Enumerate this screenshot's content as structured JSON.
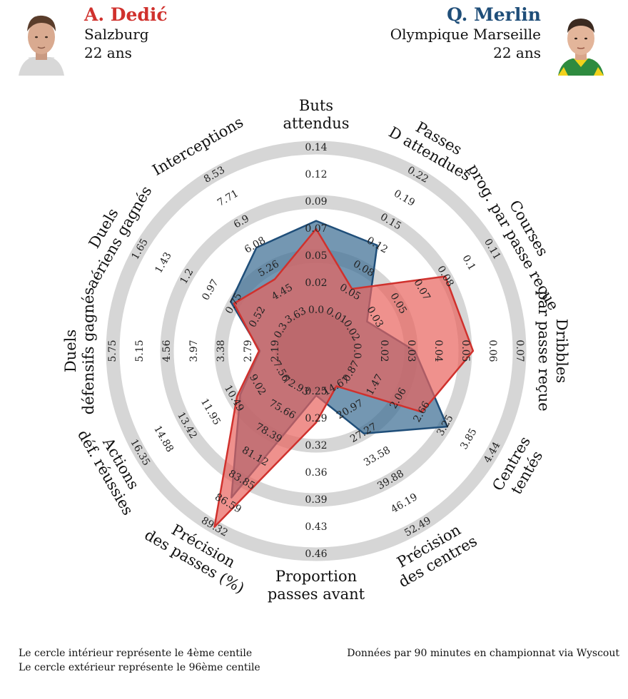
{
  "players": {
    "p1": {
      "name": "A. Dedić",
      "club": "Salzburg",
      "age": "22 ans",
      "color": "#d0312d"
    },
    "p2": {
      "name": "Q. Merlin",
      "club": "Olympique Marseille",
      "age": "22 ans",
      "color": "#1f4e79"
    }
  },
  "footer": {
    "left_line1": "Le cercle intérieur représente le 4ème centile",
    "left_line2": "Le cercle extérieur représente le 96ème centile",
    "right": "Données par 90 minutes en championnat via Wyscout"
  },
  "chart_data": {
    "type": "radar",
    "colors": {
      "p1_fill": "#e8625c",
      "p2_fill": "#3f6f94",
      "ring": "#d6d6d6",
      "inner": "#808080"
    },
    "axes": [
      {
        "label": [
          "Buts",
          "attendus"
        ],
        "ticks": [
          "0.0",
          "0.02",
          "0.05",
          "0.07",
          "0.09",
          "0.12",
          "0.14"
        ]
      },
      {
        "label": [
          "Passes",
          "D attendues"
        ],
        "ticks": [
          "0.01",
          "0.05",
          "0.08",
          "0.12",
          "0.15",
          "0.19",
          "0.22"
        ]
      },
      {
        "label": [
          "Courses",
          "prog. par passe reçue"
        ],
        "ticks": [
          "0.02",
          "0.03",
          "0.05",
          "0.07",
          "0.08",
          "0.1",
          "0.11"
        ]
      },
      {
        "label": [
          "Dribbles",
          "par passe reçue"
        ],
        "ticks": [
          "0.0",
          "0.02",
          "0.03",
          "0.04",
          "0.05",
          "0.06",
          "0.07"
        ]
      },
      {
        "label": [
          "Centres",
          "tentés"
        ],
        "ticks": [
          "0.87",
          "1.47",
          "2.06",
          "2.66",
          "3.25",
          "3.85",
          "4.44"
        ]
      },
      {
        "label": [
          "Précision",
          "des centres"
        ],
        "ticks": [
          "14.67",
          "20.97",
          "27.27",
          "33.58",
          "39.88",
          "46.19",
          "52.49"
        ]
      },
      {
        "label": [
          "Proportion",
          "passes avant"
        ],
        "ticks": [
          "0.25",
          "0.29",
          "0.32",
          "0.36",
          "0.39",
          "0.43",
          "0.46"
        ]
      },
      {
        "label": [
          "Précision",
          "des passes (%)"
        ],
        "ticks": [
          "72.93",
          "75.66",
          "78.39",
          "81.12",
          "83.85",
          "86.59",
          "89.32"
        ]
      },
      {
        "label": [
          "Actions",
          "déf. réussies"
        ],
        "ticks": [
          "7.56",
          "9.02",
          "10.49",
          "11.95",
          "13.42",
          "14.88",
          "16.35"
        ]
      },
      {
        "label": [
          "Duels",
          "défensifs gagnés"
        ],
        "ticks": [
          "2.19",
          "2.79",
          "3.38",
          "3.97",
          "4.56",
          "5.15",
          "5.75"
        ]
      },
      {
        "label": [
          "Duels",
          "aériens gagnés"
        ],
        "ticks": [
          "0.3",
          "0.52",
          "0.75",
          "0.97",
          "1.2",
          "1.43",
          "1.65"
        ]
      },
      {
        "label": [
          "Interceptions",
          ""
        ],
        "ticks": [
          "3.63",
          "4.45",
          "5.26",
          "6.08",
          "6.9",
          "7.71",
          "8.53"
        ]
      }
    ],
    "series": [
      {
        "name": "A. Dedić",
        "values": [
          0.07,
          0.05,
          0.08,
          0.05,
          2.66,
          14.5,
          0.29,
          89.32,
          10.3,
          2.55,
          0.75,
          4.9
        ]
      },
      {
        "name": "Q. Merlin",
        "values": [
          0.077,
          0.115,
          0.03,
          0.025,
          3.3,
          27.4,
          0.255,
          85.9,
          10.1,
          2.53,
          0.78,
          6.0
        ]
      }
    ]
  }
}
